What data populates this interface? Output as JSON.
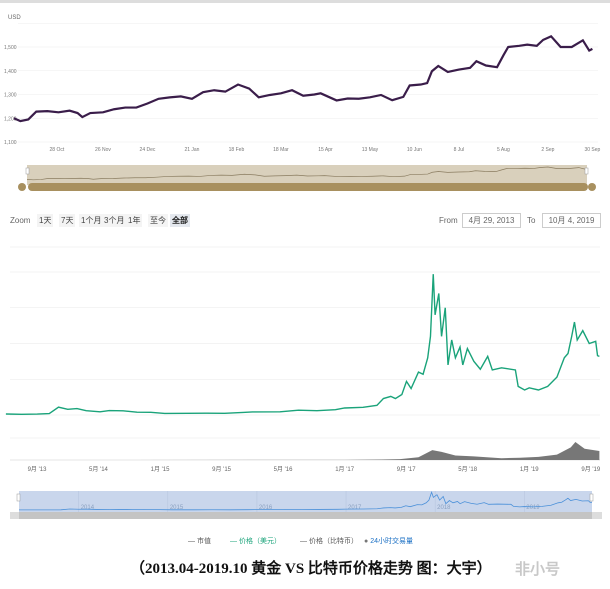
{
  "toolbar": {
    "zoom_label": "Zoom",
    "buttons": [
      "1天",
      "7天",
      "1个月",
      "3个月",
      "1年",
      "至今",
      "全部"
    ],
    "selected": "全部",
    "from_label": "From",
    "from_value": "4月 29, 2013",
    "to_label": "To",
    "to_value": "10月 4, 2019"
  },
  "legend": [
    {
      "label": "市值",
      "color": "#555555"
    },
    {
      "label": "价格（美元）",
      "color": "#1aa37a"
    },
    {
      "label": "价格（比特币）",
      "color": "#555555"
    },
    {
      "label": "24小时交易量",
      "color": "#777777"
    }
  ],
  "caption": "（2013.04-2019.10  黄金 VS 比特币价格走势 图：大宇）",
  "watermark": "非小号",
  "colors": {
    "gold_line": "#3a1d4a",
    "gold_nav_bg": "#d9d0bc",
    "gold_scroll": "#a8905f",
    "btc_line": "#1aa37a",
    "btc_volume": "#777777",
    "btc_nav_bg": "#c9d6ec",
    "btc_nav_line": "#4a90d9"
  },
  "chart_data": [
    {
      "type": "line",
      "title": "",
      "ylabel": "USD",
      "ylim": [
        1100,
        1600
      ],
      "yticks": [
        "1,100",
        "1,200",
        "1,300",
        "1,400",
        "1,500"
      ],
      "yticks_values": [
        1100,
        1200,
        1300,
        1400,
        1500
      ],
      "xticks": [
        "28 Oct",
        "26 Nov",
        "24 Dec",
        "21 Jan",
        "18 Feb",
        "18 Mar",
        "15 Apr",
        "13 May",
        "10 Jun",
        "8 Jul",
        "5 Aug",
        "2 Sep",
        "30 Sep"
      ],
      "xticks_dates": [
        "2018-10-28",
        "2018-11-26",
        "2018-12-24",
        "2019-01-21",
        "2019-02-18",
        "2019-03-18",
        "2019-04-15",
        "2019-05-13",
        "2019-06-10",
        "2019-07-08",
        "2019-08-05",
        "2019-09-02",
        "2019-09-30"
      ],
      "series": [
        {
          "name": "Gold",
          "points": [
            [
              "2018-10-01",
              1200
            ],
            [
              "2018-10-05",
              1188
            ],
            [
              "2018-10-10",
              1195
            ],
            [
              "2018-10-15",
              1228
            ],
            [
              "2018-10-22",
              1230
            ],
            [
              "2018-10-29",
              1225
            ],
            [
              "2018-11-05",
              1232
            ],
            [
              "2018-11-10",
              1222
            ],
            [
              "2018-11-13",
              1205
            ],
            [
              "2018-11-18",
              1222
            ],
            [
              "2018-11-26",
              1225
            ],
            [
              "2018-12-03",
              1238
            ],
            [
              "2018-12-10",
              1245
            ],
            [
              "2018-12-17",
              1245
            ],
            [
              "2018-12-24",
              1262
            ],
            [
              "2018-12-31",
              1282
            ],
            [
              "2019-01-07",
              1288
            ],
            [
              "2019-01-14",
              1292
            ],
            [
              "2019-01-21",
              1282
            ],
            [
              "2019-01-28",
              1310
            ],
            [
              "2019-02-04",
              1318
            ],
            [
              "2019-02-11",
              1312
            ],
            [
              "2019-02-19",
              1342
            ],
            [
              "2019-02-26",
              1325
            ],
            [
              "2019-03-04",
              1288
            ],
            [
              "2019-03-11",
              1298
            ],
            [
              "2019-03-18",
              1305
            ],
            [
              "2019-03-25",
              1318
            ],
            [
              "2019-04-01",
              1295
            ],
            [
              "2019-04-08",
              1300
            ],
            [
              "2019-04-12",
              1305
            ],
            [
              "2019-04-22",
              1275
            ],
            [
              "2019-04-29",
              1283
            ],
            [
              "2019-05-06",
              1282
            ],
            [
              "2019-05-13",
              1288
            ],
            [
              "2019-05-20",
              1298
            ],
            [
              "2019-05-27",
              1276
            ],
            [
              "2019-06-03",
              1290
            ],
            [
              "2019-06-07",
              1338
            ],
            [
              "2019-06-14",
              1342
            ],
            [
              "2019-06-18",
              1348
            ],
            [
              "2019-06-21",
              1398
            ],
            [
              "2019-06-25",
              1420
            ],
            [
              "2019-07-01",
              1395
            ],
            [
              "2019-07-08",
              1405
            ],
            [
              "2019-07-15",
              1412
            ],
            [
              "2019-07-19",
              1440
            ],
            [
              "2019-07-25",
              1422
            ],
            [
              "2019-08-01",
              1415
            ],
            [
              "2019-08-05",
              1465
            ],
            [
              "2019-08-08",
              1500
            ],
            [
              "2019-08-15",
              1505
            ],
            [
              "2019-08-20",
              1510
            ],
            [
              "2019-08-26",
              1505
            ],
            [
              "2019-08-30",
              1530
            ],
            [
              "2019-09-04",
              1545
            ],
            [
              "2019-09-10",
              1500
            ],
            [
              "2019-09-17",
              1500
            ],
            [
              "2019-09-24",
              1528
            ],
            [
              "2019-09-28",
              1485
            ],
            [
              "2019-09-30",
              1492
            ]
          ]
        }
      ]
    },
    {
      "type": "line",
      "title": "",
      "ylim": [
        0,
        20000
      ],
      "yticks_values": [
        0,
        5000,
        10000,
        15000,
        20000
      ],
      "xticks": [
        "9月 '13",
        "5月 '14",
        "1月 '15",
        "9月 '15",
        "5月 '16",
        "1月 '17",
        "9月 '17",
        "5月 '18",
        "1月 '19",
        "9月 '19"
      ],
      "xticks_values": [
        2013.667,
        2014.333,
        2015.0,
        2015.667,
        2016.333,
        2017.0,
        2017.667,
        2018.333,
        2019.0,
        2019.667
      ],
      "navigator_labels": [
        "2014",
        "2015",
        "2016",
        "2017",
        "2018",
        "2019"
      ],
      "series": [
        {
          "name": "价格（美元）",
          "points": [
            [
              2013.33,
              140
            ],
            [
              2013.5,
              100
            ],
            [
              2013.67,
              130
            ],
            [
              2013.8,
              200
            ],
            [
              2013.9,
              1100
            ],
            [
              2014.0,
              800
            ],
            [
              2014.1,
              900
            ],
            [
              2014.2,
              600
            ],
            [
              2014.35,
              450
            ],
            [
              2014.45,
              620
            ],
            [
              2014.6,
              590
            ],
            [
              2014.75,
              390
            ],
            [
              2014.9,
              380
            ],
            [
              2015.05,
              220
            ],
            [
              2015.3,
              235
            ],
            [
              2015.5,
              260
            ],
            [
              2015.7,
              236
            ],
            [
              2015.9,
              360
            ],
            [
              2016.0,
              430
            ],
            [
              2016.3,
              450
            ],
            [
              2016.5,
              670
            ],
            [
              2016.7,
              608
            ],
            [
              2016.9,
              740
            ],
            [
              2017.0,
              980
            ],
            [
              2017.2,
              1080
            ],
            [
              2017.35,
              1350
            ],
            [
              2017.42,
              2300
            ],
            [
              2017.5,
              2600
            ],
            [
              2017.55,
              2300
            ],
            [
              2017.62,
              2870
            ],
            [
              2017.67,
              4700
            ],
            [
              2017.72,
              3700
            ],
            [
              2017.8,
              6000
            ],
            [
              2017.85,
              5700
            ],
            [
              2017.9,
              8000
            ],
            [
              2017.93,
              11000
            ],
            [
              2017.96,
              19700
            ],
            [
              2017.98,
              14000
            ],
            [
              2018.02,
              17000
            ],
            [
              2018.05,
              11000
            ],
            [
              2018.09,
              15000
            ],
            [
              2018.12,
              7000
            ],
            [
              2018.16,
              10500
            ],
            [
              2018.2,
              8000
            ],
            [
              2018.25,
              9500
            ],
            [
              2018.28,
              7000
            ],
            [
              2018.33,
              9300
            ],
            [
              2018.4,
              7500
            ],
            [
              2018.47,
              6400
            ],
            [
              2018.55,
              8200
            ],
            [
              2018.6,
              6300
            ],
            [
              2018.7,
              6600
            ],
            [
              2018.85,
              6300
            ],
            [
              2018.88,
              4000
            ],
            [
              2018.95,
              3500
            ],
            [
              2019.0,
              3800
            ],
            [
              2019.1,
              3500
            ],
            [
              2019.2,
              4000
            ],
            [
              2019.3,
              5300
            ],
            [
              2019.38,
              8000
            ],
            [
              2019.42,
              8600
            ],
            [
              2019.46,
              11000
            ],
            [
              2019.49,
              13000
            ],
            [
              2019.52,
              10500
            ],
            [
              2019.58,
              11800
            ],
            [
              2019.65,
              10000
            ],
            [
              2019.72,
              10300
            ],
            [
              2019.74,
              8300
            ],
            [
              2019.76,
              8200
            ]
          ]
        },
        {
          "name": "24小时交易量",
          "unit": "relative",
          "points": [
            [
              2013.33,
              0.1
            ],
            [
              2017.0,
              0.2
            ],
            [
              2017.4,
              1
            ],
            [
              2017.6,
              2
            ],
            [
              2017.8,
              6
            ],
            [
              2017.95,
              22
            ],
            [
              2018.05,
              18
            ],
            [
              2018.2,
              10
            ],
            [
              2018.4,
              8
            ],
            [
              2018.7,
              4
            ],
            [
              2018.9,
              5
            ],
            [
              2019.1,
              7
            ],
            [
              2019.3,
              12
            ],
            [
              2019.45,
              28
            ],
            [
              2019.5,
              40
            ],
            [
              2019.6,
              25
            ],
            [
              2019.76,
              20
            ]
          ]
        }
      ]
    }
  ]
}
